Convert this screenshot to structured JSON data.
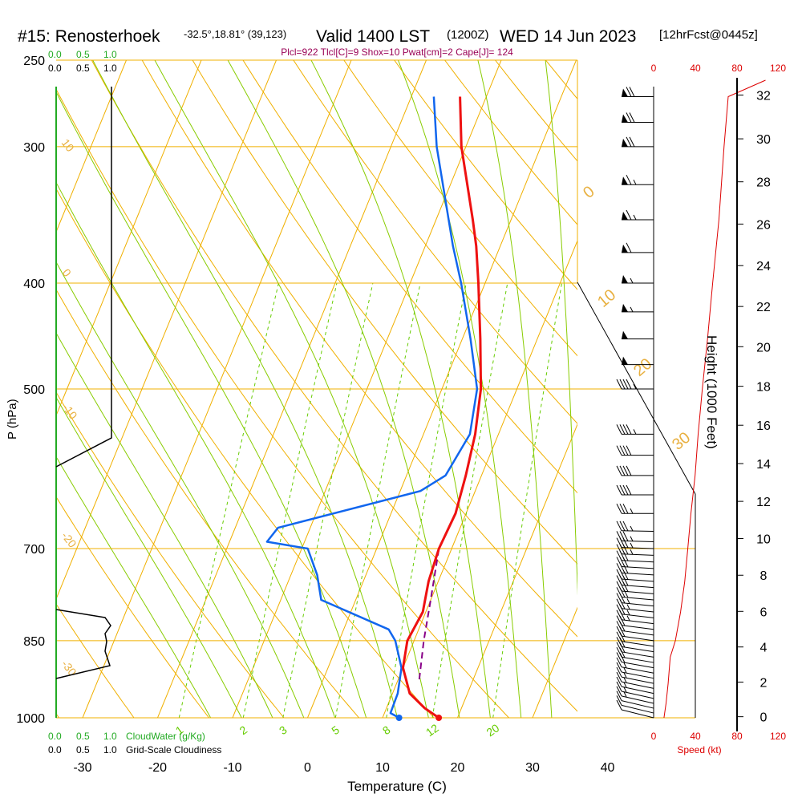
{
  "header": {
    "station": "#15: Renosterhoek",
    "location": "-32.5°,18.81° (39,123)",
    "valid": "Valid 1400 LST",
    "zulu": "(1200Z)",
    "date": "WED 14 Jun 2023",
    "forecast": "[12hrFcst@0445z]",
    "indices": "Plcl=922 Tlcl[C]=9 Shox=10 Pwat[cm]=2 Cape[J]= 124"
  },
  "colors": {
    "isotherm": "#f0b000",
    "dry_adiabat": "#f0b000",
    "moist_adiabat": "#88cc00",
    "mixing_ratio": "#66cc00",
    "temperature": "#ee1111",
    "dewpoint": "#1166ee",
    "parcel": "#880088",
    "cloudwater": "#22aa22",
    "speed": "#dd0000"
  },
  "scale_labels": {
    "cloudwater_ticks": [
      "0.0",
      "0.5",
      "1.0"
    ],
    "cloudiness_ticks": [
      "0.0",
      "0.5",
      "1.0"
    ],
    "cloudwater_label": "CloudWater (g/Kg)",
    "cloudiness_label": "Grid-Scale Cloudiness",
    "speed_ticks": [
      "0",
      "40",
      "80",
      "120"
    ],
    "speed_label": "Speed (kt)",
    "height_label": "Height (1000 Feet)",
    "height_ticks": [
      "0",
      "2",
      "4",
      "6",
      "8",
      "10",
      "12",
      "14",
      "16",
      "18",
      "20",
      "22",
      "24",
      "26",
      "28",
      "30",
      "32"
    ]
  },
  "chart_data": {
    "type": "skew-t",
    "title": "#15: Renosterhoek",
    "xlabel": "Temperature (C)",
    "ylabel": "P (hPa)",
    "x_ticks": [
      -30,
      -20,
      -10,
      0,
      10,
      20,
      30,
      40
    ],
    "p_ticks": [
      250,
      300,
      400,
      500,
      700,
      850,
      1000
    ],
    "dry_adiabat_labels": [
      -10,
      0,
      10,
      20,
      30
    ],
    "mixing_ratio_labels": [
      "1",
      "2",
      "3",
      "5",
      "8",
      "12",
      "20"
    ],
    "isotherm_labels": [
      "10",
      "0",
      "-10",
      "-20",
      "-30"
    ],
    "temperature": [
      {
        "p": 1000,
        "t": 17.5
      },
      {
        "p": 980,
        "t": 15.1
      },
      {
        "p": 950,
        "t": 12.3
      },
      {
        "p": 900,
        "t": 10.0
      },
      {
        "p": 850,
        "t": 9.1
      },
      {
        "p": 800,
        "t": 9.6
      },
      {
        "p": 750,
        "t": 8.7
      },
      {
        "p": 700,
        "t": 8.3
      },
      {
        "p": 650,
        "t": 8.6
      },
      {
        "p": 600,
        "t": 7.9
      },
      {
        "p": 550,
        "t": 6.9
      },
      {
        "p": 500,
        "t": 5.2
      },
      {
        "p": 450,
        "t": 2.4
      },
      {
        "p": 400,
        "t": -0.9
      },
      {
        "p": 370,
        "t": -3.2
      },
      {
        "p": 350,
        "t": -5.1
      },
      {
        "p": 300,
        "t": -10.6
      },
      {
        "p": 270,
        "t": -13.5
      }
    ],
    "dewpoint": [
      {
        "p": 1000,
        "t": 12.2
      },
      {
        "p": 990,
        "t": 10.8
      },
      {
        "p": 950,
        "t": 10.7
      },
      {
        "p": 900,
        "t": 9.8
      },
      {
        "p": 850,
        "t": 7.5
      },
      {
        "p": 830,
        "t": 6.0
      },
      {
        "p": 780,
        "t": -4.6
      },
      {
        "p": 740,
        "t": -6.5
      },
      {
        "p": 700,
        "t": -9.2
      },
      {
        "p": 690,
        "t": -15.0
      },
      {
        "p": 670,
        "t": -14.3
      },
      {
        "p": 620,
        "t": 2.7
      },
      {
        "p": 600,
        "t": 5.2
      },
      {
        "p": 550,
        "t": 6.2
      },
      {
        "p": 500,
        "t": 4.7
      },
      {
        "p": 450,
        "t": 1.1
      },
      {
        "p": 400,
        "t": -3.2
      },
      {
        "p": 370,
        "t": -6.3
      },
      {
        "p": 300,
        "t": -13.9
      },
      {
        "p": 270,
        "t": -17.0
      }
    ],
    "parcel": [
      {
        "p": 922,
        "t": 12.8
      },
      {
        "p": 850,
        "t": 11.3
      },
      {
        "p": 780,
        "t": 10.0
      },
      {
        "p": 700,
        "t": 8.3
      }
    ],
    "wind_profile_kt": [
      {
        "p": 1000,
        "kt": 10
      },
      {
        "p": 970,
        "kt": 12
      },
      {
        "p": 930,
        "kt": 14
      },
      {
        "p": 880,
        "kt": 16
      },
      {
        "p": 850,
        "kt": 21
      },
      {
        "p": 800,
        "kt": 26
      },
      {
        "p": 750,
        "kt": 30
      },
      {
        "p": 700,
        "kt": 33
      },
      {
        "p": 650,
        "kt": 36
      },
      {
        "p": 600,
        "kt": 40
      },
      {
        "p": 550,
        "kt": 43
      },
      {
        "p": 500,
        "kt": 47
      },
      {
        "p": 450,
        "kt": 52
      },
      {
        "p": 400,
        "kt": 57
      },
      {
        "p": 350,
        "kt": 63
      },
      {
        "p": 300,
        "kt": 68
      },
      {
        "p": 270,
        "kt": 72
      }
    ],
    "wind_barbs": [
      {
        "p": 1000,
        "kt": 12
      },
      {
        "p": 990,
        "kt": 12
      },
      {
        "p": 980,
        "kt": 12
      },
      {
        "p": 970,
        "kt": 14
      },
      {
        "p": 960,
        "kt": 14
      },
      {
        "p": 950,
        "kt": 14
      },
      {
        "p": 940,
        "kt": 14
      },
      {
        "p": 930,
        "kt": 16
      },
      {
        "p": 920,
        "kt": 16
      },
      {
        "p": 910,
        "kt": 16
      },
      {
        "p": 900,
        "kt": 18
      },
      {
        "p": 890,
        "kt": 18
      },
      {
        "p": 880,
        "kt": 18
      },
      {
        "p": 870,
        "kt": 20
      },
      {
        "p": 860,
        "kt": 20
      },
      {
        "p": 850,
        "kt": 21
      },
      {
        "p": 840,
        "kt": 22
      },
      {
        "p": 830,
        "kt": 22
      },
      {
        "p": 820,
        "kt": 24
      },
      {
        "p": 810,
        "kt": 24
      },
      {
        "p": 800,
        "kt": 26
      },
      {
        "p": 790,
        "kt": 26
      },
      {
        "p": 780,
        "kt": 28
      },
      {
        "p": 770,
        "kt": 28
      },
      {
        "p": 760,
        "kt": 29
      },
      {
        "p": 750,
        "kt": 30
      },
      {
        "p": 740,
        "kt": 30
      },
      {
        "p": 730,
        "kt": 31
      },
      {
        "p": 720,
        "kt": 32
      },
      {
        "p": 710,
        "kt": 33
      },
      {
        "p": 700,
        "kt": 33
      },
      {
        "p": 690,
        "kt": 34
      },
      {
        "p": 675,
        "kt": 35
      },
      {
        "p": 650,
        "kt": 36
      },
      {
        "p": 625,
        "kt": 38
      },
      {
        "p": 600,
        "kt": 40
      },
      {
        "p": 575,
        "kt": 41
      },
      {
        "p": 550,
        "kt": 43
      },
      {
        "p": 500,
        "kt": 47
      },
      {
        "p": 475,
        "kt": 50
      },
      {
        "p": 450,
        "kt": 52
      },
      {
        "p": 425,
        "kt": 55
      },
      {
        "p": 400,
        "kt": 57
      },
      {
        "p": 375,
        "kt": 60
      },
      {
        "p": 350,
        "kt": 63
      },
      {
        "p": 325,
        "kt": 65
      },
      {
        "p": 300,
        "kt": 68
      },
      {
        "p": 285,
        "kt": 70
      },
      {
        "p": 270,
        "kt": 72
      }
    ],
    "cloudiness_profile": [
      {
        "p": 1000,
        "v": 0.0
      },
      {
        "p": 560,
        "v": 0.0
      },
      {
        "p": 535,
        "v": 1.0
      },
      {
        "p": 270,
        "v": 1.0
      }
    ],
    "low_cloudiness_profile": [
      {
        "p": 950,
        "v": 0.0
      },
      {
        "p": 935,
        "v": 1.0
      },
      {
        "p": 870,
        "v": 1.0
      },
      {
        "p": 860,
        "v": 0.9
      },
      {
        "p": 840,
        "v": 1.0
      },
      {
        "p": 820,
        "v": 0.9
      },
      {
        "p": 800,
        "v": 0.0
      }
    ]
  }
}
